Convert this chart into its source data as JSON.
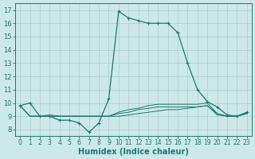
{
  "xlabel": "Humidex (Indice chaleur)",
  "bg_color": "#cde8e8",
  "line_color": "#1a7a6e",
  "grid_color": "#b8d8d8",
  "x_values": [
    0,
    1,
    2,
    3,
    4,
    5,
    6,
    7,
    8,
    9,
    10,
    11,
    12,
    13,
    14,
    15,
    16,
    17,
    18,
    19,
    20,
    21,
    22,
    23
  ],
  "ylim": [
    7.5,
    17.5
  ],
  "xlim": [
    -0.5,
    23.5
  ],
  "yticks": [
    8,
    9,
    10,
    11,
    12,
    13,
    14,
    15,
    16,
    17
  ],
  "xticks": [
    0,
    1,
    2,
    3,
    4,
    5,
    6,
    7,
    8,
    9,
    10,
    11,
    12,
    13,
    14,
    15,
    16,
    17,
    18,
    19,
    20,
    21,
    22,
    23
  ],
  "line1_y": [
    9.8,
    10.0,
    9.0,
    9.0,
    8.7,
    8.7,
    8.5,
    7.8,
    8.5,
    10.3,
    16.9,
    16.4,
    16.2,
    16.0,
    16.0,
    16.0,
    15.3,
    13.0,
    11.0,
    10.1,
    9.7,
    9.1,
    9.0,
    9.3
  ],
  "line2_y": [
    9.8,
    9.0,
    9.0,
    9.0,
    9.0,
    9.0,
    9.0,
    9.0,
    9.0,
    9.0,
    9.0,
    9.1,
    9.2,
    9.3,
    9.4,
    9.5,
    9.5,
    9.6,
    9.7,
    9.8,
    9.2,
    9.0,
    9.0,
    9.2
  ],
  "line3_y": [
    9.8,
    9.0,
    9.0,
    9.0,
    9.0,
    9.0,
    9.0,
    9.0,
    9.0,
    9.0,
    9.2,
    9.3,
    9.5,
    9.6,
    9.7,
    9.7,
    9.7,
    9.7,
    9.7,
    9.8,
    9.1,
    9.0,
    9.0,
    9.2
  ],
  "line4_y": [
    9.8,
    9.0,
    9.0,
    9.1,
    9.0,
    9.0,
    9.0,
    9.0,
    9.0,
    9.0,
    9.3,
    9.5,
    9.6,
    9.8,
    9.9,
    9.9,
    9.9,
    9.9,
    9.9,
    10.0,
    9.2,
    9.0,
    9.0,
    9.2
  ]
}
